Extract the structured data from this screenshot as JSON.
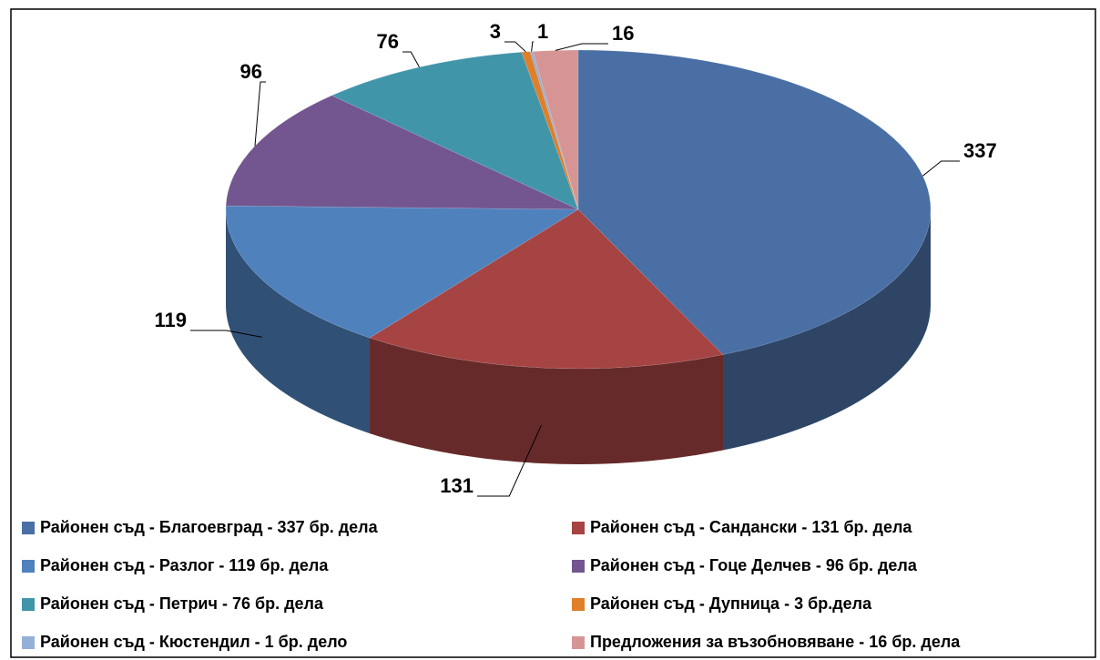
{
  "chart_data": {
    "type": "pie",
    "categories": [
      "Районен съд - Благоевград - 337 бр. дела",
      "Районен съд - Сандански - 131 бр. дела",
      "Районен съд - Разлог - 119 бр. дела",
      "Районен съд - Гоце Делчев - 96 бр. дела",
      "Районен съд - Петрич - 76 бр. дела",
      "Районен съд - Дупница - 3 бр.дела",
      "Районен съд - Кюстендил - 1 бр. дело",
      "Предложения за възобновяване - 16 бр. дела"
    ],
    "values": [
      337,
      131,
      119,
      96,
      76,
      3,
      1,
      16
    ],
    "colors": [
      "#4a6fa5",
      "#a64444",
      "#4f81bd",
      "#73568f",
      "#4195a9",
      "#e07f2a",
      "#94b0d8",
      "#d69594"
    ],
    "legend": "bottom"
  }
}
